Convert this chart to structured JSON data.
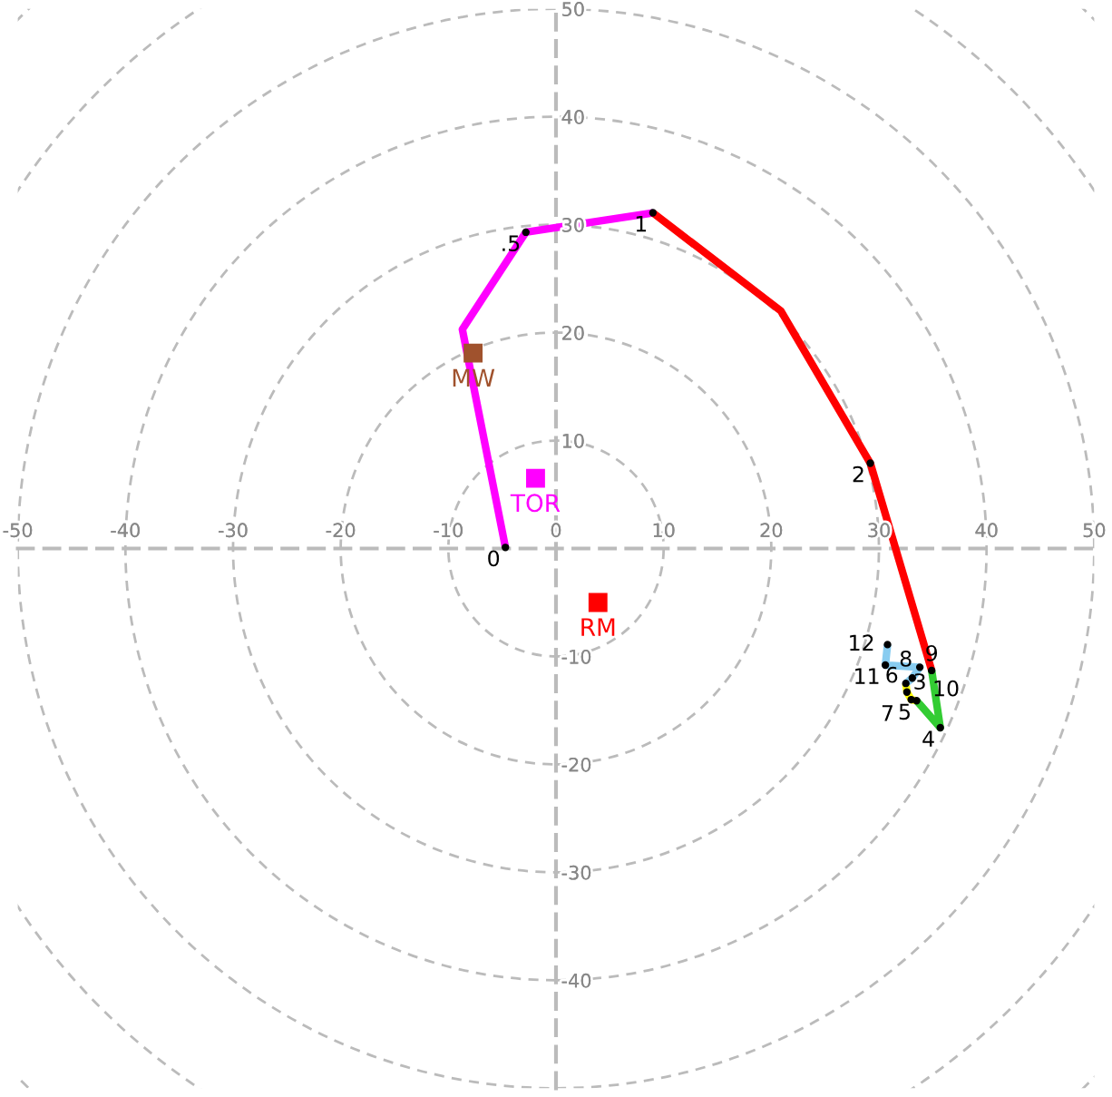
{
  "chart_data": {
    "type": "line",
    "xlim": [
      -50,
      50
    ],
    "ylim": [
      -50,
      50
    ],
    "xticks": [
      -50,
      -40,
      -30,
      -20,
      -10,
      0,
      10,
      20,
      30,
      40,
      50
    ],
    "yticks": [
      -40,
      -30,
      -20,
      -10,
      10,
      20,
      30,
      40,
      50
    ],
    "grid": true,
    "legend": false,
    "line_style": "solid",
    "tick_labels": "xy",
    "series": [
      {
        "type": "line",
        "color": "#ff00ff",
        "x": [
          -4.7,
          -8.7,
          -2.8,
          9.0
        ],
        "values": [
          0.1,
          20.3,
          29.3,
          31.1
        ]
      },
      {
        "type": "line",
        "color": "#ff0000",
        "x": [
          9.0,
          20.9,
          29.2,
          34.9
        ],
        "values": [
          31.1,
          22.0,
          7.9,
          -11.3
        ]
      },
      {
        "type": "line",
        "color": "#33cc33",
        "x": [
          34.9,
          35.7,
          33.5
        ],
        "values": [
          -11.3,
          -16.6,
          -14.1
        ]
      },
      {
        "type": "line",
        "color": "#ffff00",
        "x": [
          33.5,
          33.0,
          32.6,
          32.5
        ],
        "values": [
          -14.1,
          -14.0,
          -13.3,
          -12.5
        ]
      },
      {
        "type": "line",
        "color": "#88ccf0",
        "x": [
          32.5,
          33.1,
          33.8,
          30.6,
          30.8
        ],
        "values": [
          -12.5,
          -12.0,
          -11.0,
          -10.8,
          -8.9
        ]
      },
      {
        "type": "scatter",
        "marker": "circle",
        "color": "#000000",
        "x": [
          -4.7,
          -2.8,
          9.0,
          29.2,
          34.9,
          35.7,
          33.5,
          33.0,
          32.6,
          32.5,
          33.1,
          33.8,
          30.6,
          30.8
        ],
        "values": [
          0.1,
          29.3,
          31.1,
          7.9,
          -11.3,
          -16.6,
          -14.1,
          -14.0,
          -13.3,
          -12.5,
          -12.0,
          -11.0,
          -10.8,
          -8.9
        ]
      },
      {
        "type": "scatter",
        "marker": "square",
        "name": "RM",
        "color": "#ff0000",
        "x": [
          3.9
        ],
        "values": [
          -5.0
        ]
      },
      {
        "type": "scatter",
        "marker": "square",
        "name": "TOR",
        "color": "#ff00ff",
        "x": [
          -1.9
        ],
        "values": [
          6.5
        ]
      },
      {
        "type": "scatter",
        "marker": "square",
        "name": "MW",
        "color": "#a0522d",
        "x": [
          -7.7
        ],
        "values": [
          18.1
        ]
      }
    ],
    "annotations": [
      {
        "text": "0",
        "x": -4.7,
        "y": 0.1
      },
      {
        "text": ".5",
        "x": -2.8,
        "y": 29.3
      },
      {
        "text": "1",
        "x": 9.0,
        "y": 31.1
      },
      {
        "text": "2",
        "x": 29.2,
        "y": 7.9
      },
      {
        "text": "3",
        "x": 34.9,
        "y": -11.3
      },
      {
        "text": "4",
        "x": 35.7,
        "y": -16.6
      },
      {
        "text": "5",
        "x": 33.5,
        "y": -14.1
      },
      {
        "text": "6",
        "x": 33.0,
        "y": -14.0
      },
      {
        "text": "7",
        "x": 32.6,
        "y": -13.3
      },
      {
        "text": "8",
        "x": 32.5,
        "y": -12.5
      },
      {
        "text": "9",
        "x": 33.1,
        "y": -12.0
      },
      {
        "text": "10",
        "x": 33.8,
        "y": -11.0
      },
      {
        "text": "11",
        "x": 30.6,
        "y": -10.8
      },
      {
        "text": "12",
        "x": 30.8,
        "y": -8.9
      }
    ]
  }
}
